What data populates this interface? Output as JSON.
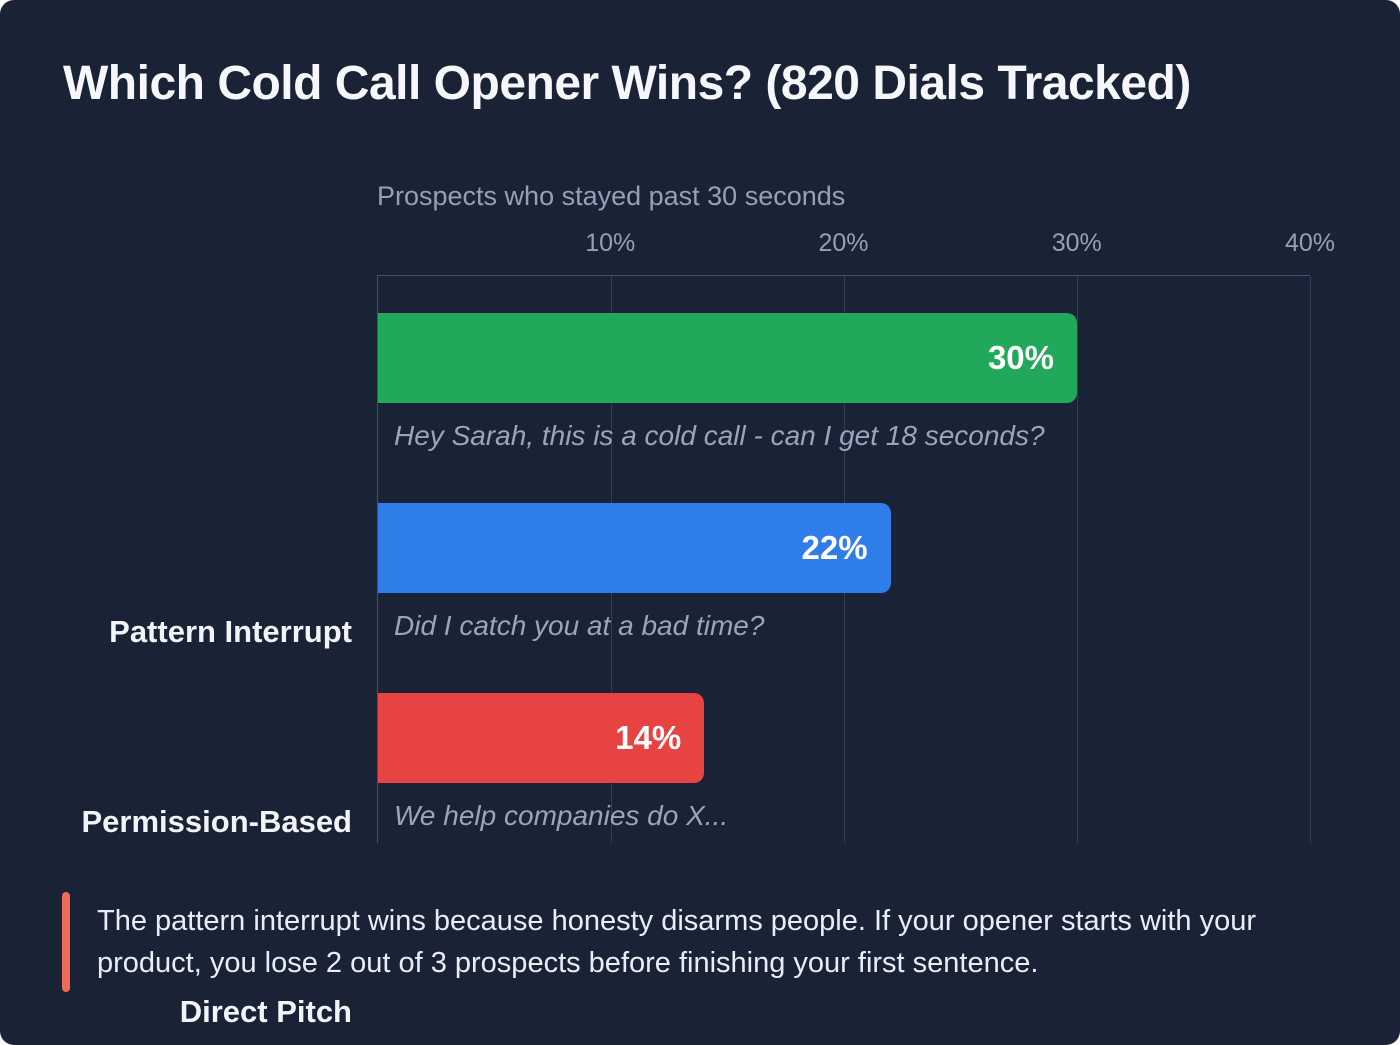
{
  "title": "Which Cold Call Opener Wins? (820 Dials Tracked)",
  "chart_data": {
    "type": "bar",
    "orientation": "horizontal",
    "subtitle": "Prospects who stayed past 30 seconds",
    "categories": [
      "Pattern Interrupt",
      "Permission-Based",
      "Direct Pitch"
    ],
    "values": [
      30,
      22,
      14
    ],
    "value_labels": [
      "30%",
      "22%",
      "14%"
    ],
    "captions": [
      "Hey Sarah, this is a cold call - can I get 18 seconds?",
      "Did I catch you at a bad time?",
      "We help companies do X..."
    ],
    "bar_colors": [
      "#22a85a",
      "#2f7de9",
      "#e74343"
    ],
    "xlim": [
      0,
      40
    ],
    "tick_values": [
      10,
      20,
      30,
      40
    ],
    "x_ticks": [
      "10%",
      "20%",
      "30%",
      "40%"
    ],
    "grid": true,
    "legend": "none"
  },
  "note": {
    "text": "The pattern interrupt wins because honesty disarms people. If your opener starts with your product, you lose 2 out of 3 prospects before finishing your first sentence.",
    "accent_color": "#ee6b55"
  },
  "colors": {
    "card_background": "#1a2335",
    "title_text": "#f5f7fa",
    "muted_text": "#94a0b6",
    "caption_text": "#9aa4ba",
    "gridline": "#323d58",
    "axis_frame": "#42506e",
    "note_text": "#e9edf4"
  }
}
